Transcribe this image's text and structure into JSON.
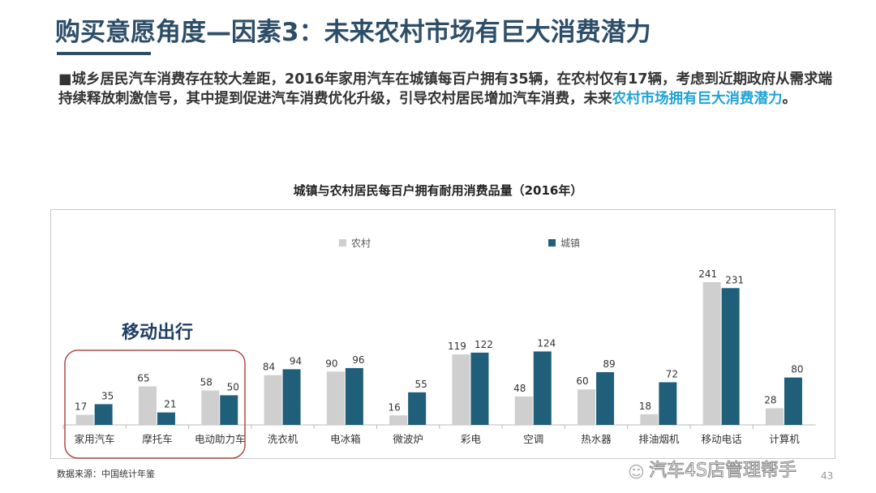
{
  "title": "购买意愿角度—因素3：未来农村市场有巨大消费潜力",
  "paragraph": {
    "bullet": "■",
    "text": "城乡居民汽车消费存在较大差距，2016年家用汽车在城镇每百户拥有35辆，在农村仅有17辆，考虑到近期政府从需求端持续释放刺激信号，其中提到促进汽车消费优化升级，引导农村居民增加汽车消费，未来",
    "highlight": "农村市场拥有巨大消费潜力",
    "end": "。"
  },
  "annotation": "移动出行",
  "source": "数据来源：中国统计年鉴",
  "page_number": "43",
  "watermark": "汽车4S店管理帮手",
  "colors": {
    "rural": "#d0cfcf",
    "urban": "#1f5f7a",
    "title": "#2e4e68",
    "highlight": "#1fa3d6",
    "annotation_box": "#b04a4a"
  },
  "chart_data": {
    "type": "bar",
    "title": "城镇与农村居民每百户拥有耐用消费品量（2016年）",
    "categories": [
      "家用汽车",
      "摩托车",
      "电动助力车",
      "洗衣机",
      "电冰箱",
      "微波炉",
      "彩电",
      "空调",
      "热水器",
      "排油烟机",
      "移动电话",
      "计算机"
    ],
    "series": [
      {
        "name": "农村",
        "values": [
          17,
          65,
          58,
          84,
          90,
          16,
          119,
          48,
          60,
          18,
          241,
          28
        ]
      },
      {
        "name": "城镇",
        "values": [
          35,
          21,
          50,
          94,
          96,
          55,
          122,
          124,
          89,
          72,
          231,
          80
        ]
      }
    ],
    "legend_position": "top",
    "grid": false,
    "ylim": [
      0,
      260
    ]
  }
}
